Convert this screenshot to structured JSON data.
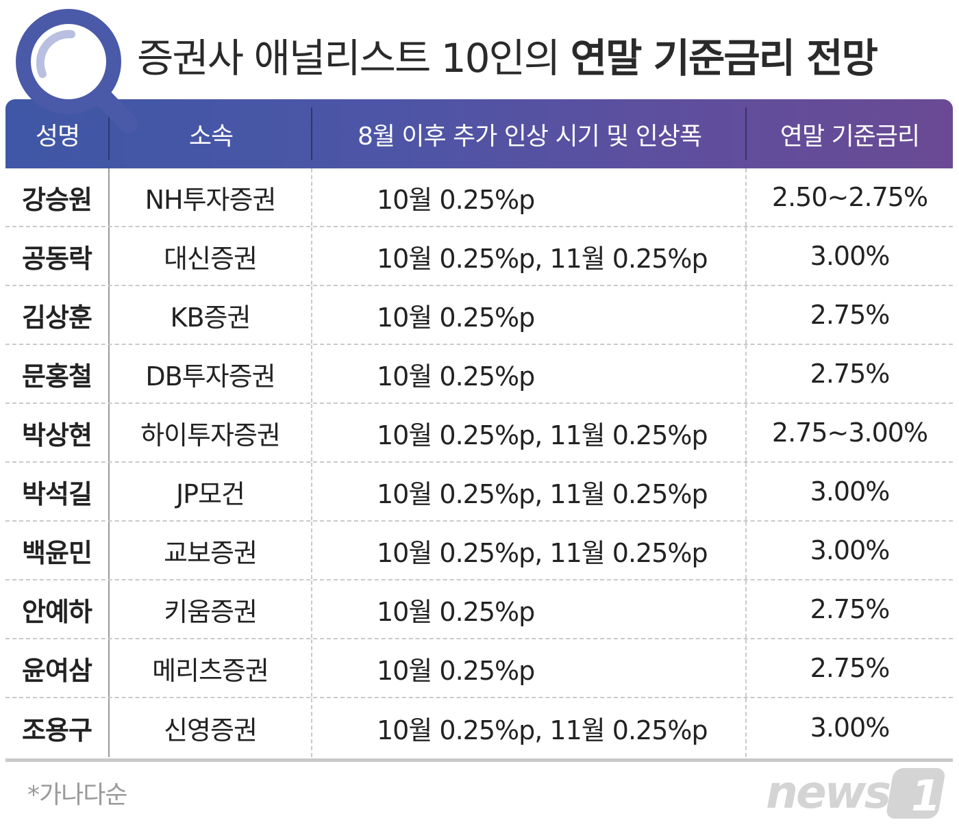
{
  "title": {
    "light": "증권사 애널리스트 10인의 ",
    "bold": "연말 기준금리 전망"
  },
  "header": {
    "name": "성명",
    "firm": "소속",
    "plan": "8월 이후 추가 인상 시기 및 인상폭",
    "rate": "연말 기준금리"
  },
  "rows": [
    {
      "name": "강승원",
      "firm": "NH투자증권",
      "plan": "10월 0.25%p",
      "rate": "2.50~2.75%"
    },
    {
      "name": "공동락",
      "firm": "대신증권",
      "plan": "10월 0.25%p, 11월 0.25%p",
      "rate": "3.00%"
    },
    {
      "name": "김상훈",
      "firm": "KB증권",
      "plan": "10월 0.25%p",
      "rate": "2.75%"
    },
    {
      "name": "문홍철",
      "firm": "DB투자증권",
      "plan": "10월 0.25%p",
      "rate": "2.75%"
    },
    {
      "name": "박상현",
      "firm": "하이투자증권",
      "plan": "10월 0.25%p, 11월 0.25%p",
      "rate": "2.75~3.00%"
    },
    {
      "name": "박석길",
      "firm": "JP모건",
      "plan": "10월 0.25%p, 11월 0.25%p",
      "rate": "3.00%"
    },
    {
      "name": "백윤민",
      "firm": "교보증권",
      "plan": "10월 0.25%p, 11월 0.25%p",
      "rate": "3.00%"
    },
    {
      "name": "안예하",
      "firm": "키움증권",
      "plan": "10월 0.25%p",
      "rate": "2.75%"
    },
    {
      "name": "윤여삼",
      "firm": "메리츠증권",
      "plan": "10월 0.25%p",
      "rate": "2.75%"
    },
    {
      "name": "조용구",
      "firm": "신영증권",
      "plan": "10월 0.25%p, 11월 0.25%p",
      "rate": "3.00%"
    }
  ],
  "footnote": "*가나다순",
  "logo": {
    "text": "news",
    "mark": "1",
    "icon": "news1-logo"
  },
  "decor": {
    "icon": "magnifier-icon"
  },
  "colors": {
    "header_start": "#3f57a6",
    "header_end": "#6a4a94",
    "magnifier": "#4a59a8",
    "divider": "#c9c9c9",
    "logo_gray": "#d4d4d4"
  }
}
